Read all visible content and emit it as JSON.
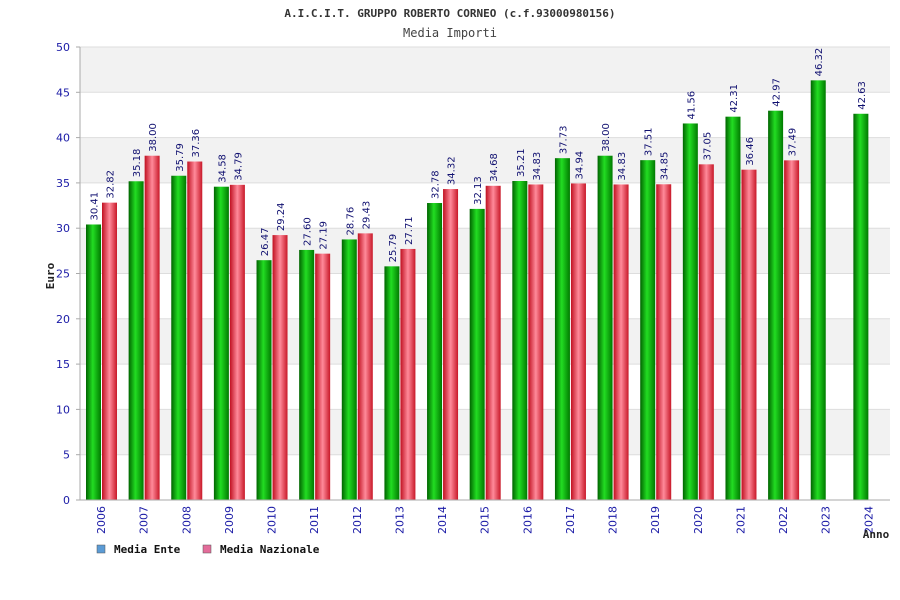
{
  "chart_data": {
    "type": "bar",
    "title": "A.I.C.I.T. GRUPPO ROBERTO CORNEO (c.f.93000980156)",
    "subtitle": "Media Importi",
    "ylabel": "Euro",
    "xlabel": "Anno",
    "ylim": [
      0,
      50
    ],
    "yticks": [
      0,
      5,
      10,
      15,
      20,
      25,
      30,
      35,
      40,
      45,
      50
    ],
    "categories": [
      "2006",
      "2007",
      "2008",
      "2009",
      "2010",
      "2011",
      "2012",
      "2013",
      "2014",
      "2015",
      "2016",
      "2017",
      "2018",
      "2019",
      "2020",
      "2021",
      "2022",
      "2023",
      "2024"
    ],
    "series": [
      {
        "name": "Media Ente",
        "color": "#00b000",
        "values": [
          30.41,
          35.18,
          35.79,
          34.58,
          26.47,
          27.6,
          28.76,
          25.79,
          32.78,
          32.13,
          35.21,
          37.73,
          38.0,
          37.51,
          41.56,
          42.31,
          42.97,
          46.32,
          42.63
        ],
        "labels": [
          "30.41",
          "35.18",
          "35.79",
          "34.58",
          "26.47",
          "27.60",
          "28.76",
          "25.79",
          "32.78",
          "32.13",
          "35.21",
          "37.73",
          "38.00",
          "37.51",
          "41.56",
          "42.31",
          "42.97",
          "46.32",
          "42.63"
        ]
      },
      {
        "name": "Media Nazionale",
        "color": "#e02030",
        "values": [
          32.82,
          38.0,
          37.36,
          34.79,
          29.24,
          27.19,
          29.43,
          27.71,
          34.32,
          34.68,
          34.83,
          34.94,
          34.83,
          34.85,
          37.05,
          36.46,
          37.49,
          null,
          null
        ],
        "labels": [
          "32.82",
          "38.00",
          "37.36",
          "34.79",
          "29.24",
          "27.19",
          "29.43",
          "27.71",
          "34.32",
          "34.68",
          "34.83",
          "34.94",
          "34.83",
          "34.85",
          "37.05",
          "36.46",
          "37.49",
          "",
          ""
        ]
      }
    ],
    "legend": [
      {
        "label": "Media Ente",
        "swatch": "#5b9bd5"
      },
      {
        "label": "Media Nazionale",
        "swatch": "#e36c9a"
      }
    ],
    "grid": true,
    "legend_position": "bottom-left"
  }
}
